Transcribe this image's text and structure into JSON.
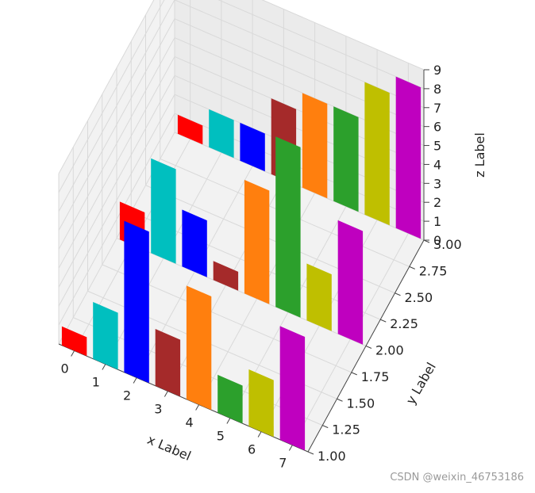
{
  "chart_data": {
    "type": "bar3d",
    "xlabel": "x Label",
    "ylabel": "y Label",
    "zlabel": "z Label",
    "x_ticks": [
      "0",
      "1",
      "2",
      "3",
      "4",
      "5",
      "6",
      "7"
    ],
    "y_ticks": [
      "1.00",
      "1.25",
      "1.50",
      "1.75",
      "2.00",
      "2.25",
      "2.50",
      "2.75",
      "3.00"
    ],
    "z_ticks": [
      "0",
      "1",
      "2",
      "3",
      "4",
      "5",
      "6",
      "7",
      "8",
      "9"
    ],
    "xlim": [
      -0.5,
      7.5
    ],
    "ylim": [
      1.0,
      3.0
    ],
    "zlim": [
      0,
      9
    ],
    "colors": [
      "#ff0000",
      "#00bfbf",
      "#0000ff",
      "#a52a2a",
      "#ff7f0e",
      "#2ca02c",
      "#bfbf00",
      "#bf00bf"
    ],
    "series": [
      {
        "y": 1,
        "values": [
          1,
          3,
          8,
          3,
          6,
          2,
          3,
          6
        ]
      },
      {
        "y": 2,
        "values": [
          2,
          5,
          3,
          1,
          6,
          9,
          3,
          6
        ]
      },
      {
        "y": 3,
        "values": [
          1,
          2,
          2,
          4,
          5,
          5,
          7,
          8
        ]
      }
    ],
    "grid": true
  },
  "watermark": "CSDN @weixin_46753186"
}
